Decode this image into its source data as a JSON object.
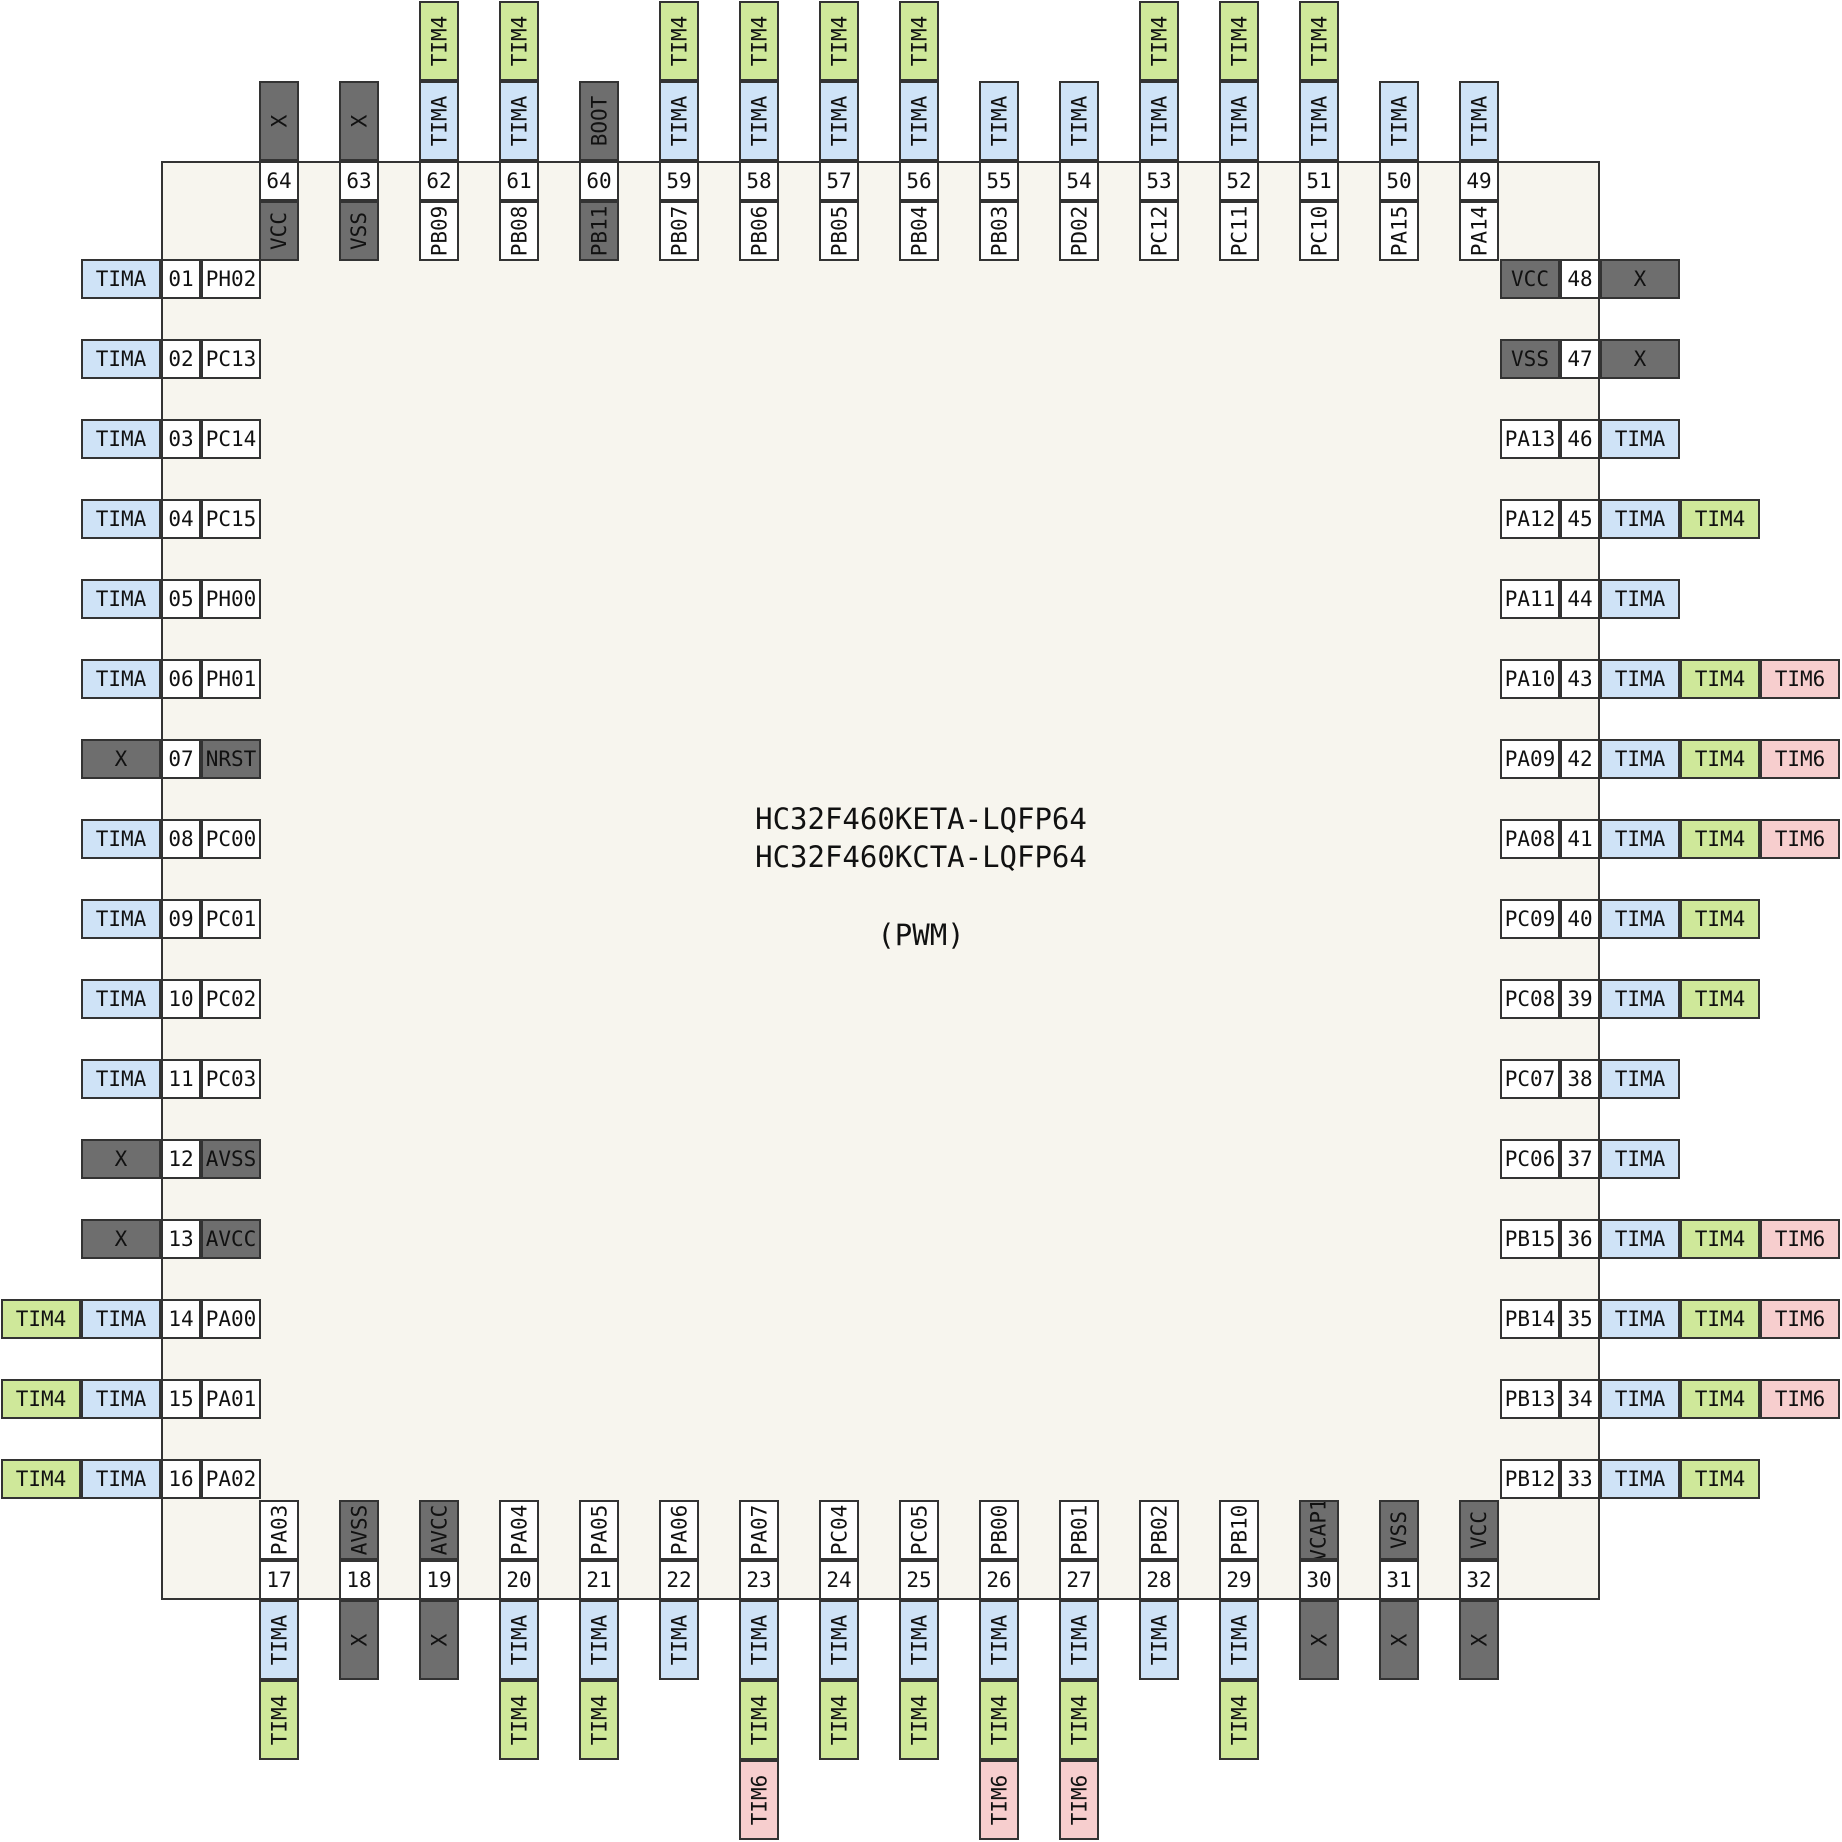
{
  "chip": {
    "title_line1": "HC32F460KETA-LQFP64",
    "title_line2": "HC32F460KCTA-LQFP64",
    "subtitle": "(PWM)"
  },
  "colors": {
    "package": "#f7f5ee",
    "pin_power": "#6e6e6e",
    "TIMA": "#cfe3f7",
    "TIM4": "#cfe89a",
    "TIM6": "#f7cece",
    "unavailable": "#6e6e6e"
  },
  "pins": [
    {
      "num": "01",
      "name": "PH02",
      "funcs": [
        "TIMA"
      ]
    },
    {
      "num": "02",
      "name": "PC13",
      "funcs": [
        "TIMA"
      ]
    },
    {
      "num": "03",
      "name": "PC14",
      "funcs": [
        "TIMA"
      ]
    },
    {
      "num": "04",
      "name": "PC15",
      "funcs": [
        "TIMA"
      ]
    },
    {
      "num": "05",
      "name": "PH00",
      "funcs": [
        "TIMA"
      ]
    },
    {
      "num": "06",
      "name": "PH01",
      "funcs": [
        "TIMA"
      ]
    },
    {
      "num": "07",
      "name": "NRST",
      "power": true,
      "funcs": [
        "X"
      ]
    },
    {
      "num": "08",
      "name": "PC00",
      "funcs": [
        "TIMA"
      ]
    },
    {
      "num": "09",
      "name": "PC01",
      "funcs": [
        "TIMA"
      ]
    },
    {
      "num": "10",
      "name": "PC02",
      "funcs": [
        "TIMA"
      ]
    },
    {
      "num": "11",
      "name": "PC03",
      "funcs": [
        "TIMA"
      ]
    },
    {
      "num": "12",
      "name": "AVSS",
      "power": true,
      "funcs": [
        "X"
      ]
    },
    {
      "num": "13",
      "name": "AVCC",
      "power": true,
      "funcs": [
        "X"
      ]
    },
    {
      "num": "14",
      "name": "PA00",
      "funcs": [
        "TIMA",
        "TIM4"
      ]
    },
    {
      "num": "15",
      "name": "PA01",
      "funcs": [
        "TIMA",
        "TIM4"
      ]
    },
    {
      "num": "16",
      "name": "PA02",
      "funcs": [
        "TIMA",
        "TIM4"
      ]
    },
    {
      "num": "17",
      "name": "PA03",
      "funcs": [
        "TIMA",
        "TIM4"
      ]
    },
    {
      "num": "18",
      "name": "AVSS",
      "power": true,
      "funcs": [
        "X"
      ]
    },
    {
      "num": "19",
      "name": "AVCC",
      "power": true,
      "funcs": [
        "X"
      ]
    },
    {
      "num": "20",
      "name": "PA04",
      "funcs": [
        "TIMA",
        "TIM4"
      ]
    },
    {
      "num": "21",
      "name": "PA05",
      "funcs": [
        "TIMA",
        "TIM4"
      ]
    },
    {
      "num": "22",
      "name": "PA06",
      "funcs": [
        "TIMA"
      ]
    },
    {
      "num": "23",
      "name": "PA07",
      "funcs": [
        "TIMA",
        "TIM4",
        "TIM6"
      ]
    },
    {
      "num": "24",
      "name": "PC04",
      "funcs": [
        "TIMA",
        "TIM4"
      ]
    },
    {
      "num": "25",
      "name": "PC05",
      "funcs": [
        "TIMA",
        "TIM4"
      ]
    },
    {
      "num": "26",
      "name": "PB00",
      "funcs": [
        "TIMA",
        "TIM4",
        "TIM6"
      ]
    },
    {
      "num": "27",
      "name": "PB01",
      "funcs": [
        "TIMA",
        "TIM4",
        "TIM6"
      ]
    },
    {
      "num": "28",
      "name": "PB02",
      "funcs": [
        "TIMA"
      ]
    },
    {
      "num": "29",
      "name": "PB10",
      "funcs": [
        "TIMA",
        "TIM4"
      ]
    },
    {
      "num": "30",
      "name": "VCAP1",
      "power": true,
      "funcs": [
        "X"
      ]
    },
    {
      "num": "31",
      "name": "VSS",
      "power": true,
      "funcs": [
        "X"
      ]
    },
    {
      "num": "32",
      "name": "VCC",
      "power": true,
      "funcs": [
        "X"
      ]
    },
    {
      "num": "33",
      "name": "PB12",
      "funcs": [
        "TIMA",
        "TIM4"
      ]
    },
    {
      "num": "34",
      "name": "PB13",
      "funcs": [
        "TIMA",
        "TIM4",
        "TIM6"
      ]
    },
    {
      "num": "35",
      "name": "PB14",
      "funcs": [
        "TIMA",
        "TIM4",
        "TIM6"
      ]
    },
    {
      "num": "36",
      "name": "PB15",
      "funcs": [
        "TIMA",
        "TIM4",
        "TIM6"
      ]
    },
    {
      "num": "37",
      "name": "PC06",
      "funcs": [
        "TIMA"
      ]
    },
    {
      "num": "38",
      "name": "PC07",
      "funcs": [
        "TIMA"
      ]
    },
    {
      "num": "39",
      "name": "PC08",
      "funcs": [
        "TIMA",
        "TIM4"
      ]
    },
    {
      "num": "40",
      "name": "PC09",
      "funcs": [
        "TIMA",
        "TIM4"
      ]
    },
    {
      "num": "41",
      "name": "PA08",
      "funcs": [
        "TIMA",
        "TIM4",
        "TIM6"
      ]
    },
    {
      "num": "42",
      "name": "PA09",
      "funcs": [
        "TIMA",
        "TIM4",
        "TIM6"
      ]
    },
    {
      "num": "43",
      "name": "PA10",
      "funcs": [
        "TIMA",
        "TIM4",
        "TIM6"
      ]
    },
    {
      "num": "44",
      "name": "PA11",
      "funcs": [
        "TIMA"
      ]
    },
    {
      "num": "45",
      "name": "PA12",
      "funcs": [
        "TIMA",
        "TIM4"
      ]
    },
    {
      "num": "46",
      "name": "PA13",
      "funcs": [
        "TIMA"
      ]
    },
    {
      "num": "47",
      "name": "VSS",
      "power": true,
      "funcs": [
        "X"
      ]
    },
    {
      "num": "48",
      "name": "VCC",
      "power": true,
      "funcs": [
        "X"
      ]
    },
    {
      "num": "49",
      "name": "PA14",
      "funcs": [
        "TIMA"
      ]
    },
    {
      "num": "50",
      "name": "PA15",
      "funcs": [
        "TIMA"
      ]
    },
    {
      "num": "51",
      "name": "PC10",
      "funcs": [
        "TIMA",
        "TIM4"
      ]
    },
    {
      "num": "52",
      "name": "PC11",
      "funcs": [
        "TIMA",
        "TIM4"
      ]
    },
    {
      "num": "53",
      "name": "PC12",
      "funcs": [
        "TIMA",
        "TIM4"
      ]
    },
    {
      "num": "54",
      "name": "PD02",
      "funcs": [
        "TIMA"
      ]
    },
    {
      "num": "55",
      "name": "PB03",
      "funcs": [
        "TIMA"
      ]
    },
    {
      "num": "56",
      "name": "PB04",
      "funcs": [
        "TIMA",
        "TIM4"
      ]
    },
    {
      "num": "57",
      "name": "PB05",
      "funcs": [
        "TIMA",
        "TIM4"
      ]
    },
    {
      "num": "58",
      "name": "PB06",
      "funcs": [
        "TIMA",
        "TIM4"
      ]
    },
    {
      "num": "59",
      "name": "PB07",
      "funcs": [
        "TIMA",
        "TIM4"
      ]
    },
    {
      "num": "60",
      "name": "PB11",
      "power": true,
      "funcs": [
        "BOOT"
      ]
    },
    {
      "num": "61",
      "name": "PB08",
      "funcs": [
        "TIMA",
        "TIM4"
      ]
    },
    {
      "num": "62",
      "name": "PB09",
      "funcs": [
        "TIMA",
        "TIM4"
      ]
    },
    {
      "num": "63",
      "name": "VSS",
      "power": true,
      "funcs": [
        "X"
      ]
    },
    {
      "num": "64",
      "name": "VCC",
      "power": true,
      "funcs": [
        "X"
      ]
    }
  ]
}
